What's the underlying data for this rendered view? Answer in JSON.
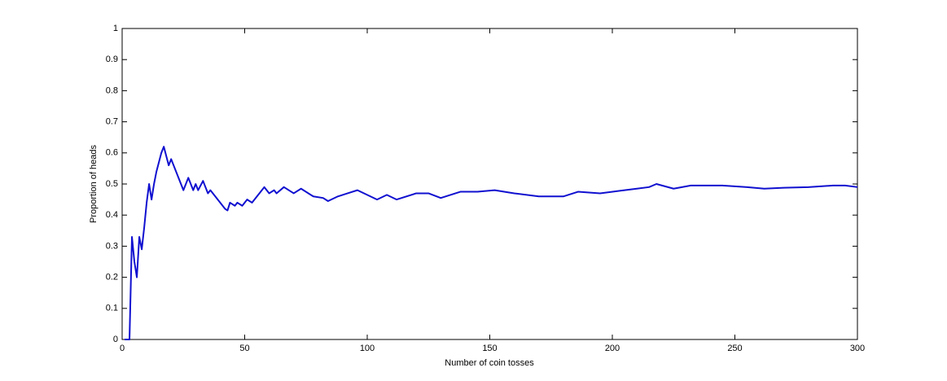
{
  "chart_data": {
    "type": "line",
    "xlabel": "Number of coin tosses",
    "ylabel": "Proportion of heads",
    "x": [
      1,
      2,
      3,
      4,
      5,
      6,
      7,
      8,
      9,
      10,
      11,
      12,
      13,
      14,
      15,
      16,
      17,
      18,
      19,
      20,
      22,
      24,
      25,
      27,
      29,
      30,
      31,
      33,
      35,
      36,
      38,
      42,
      43,
      44,
      46,
      47,
      49,
      51,
      53,
      58,
      60,
      62,
      63,
      66,
      70,
      73,
      78,
      82,
      84,
      88,
      92,
      96,
      104,
      108,
      112,
      120,
      125,
      130,
      138,
      145,
      152,
      160,
      170,
      180,
      186,
      195,
      205,
      210,
      215,
      218,
      225,
      232,
      240,
      245,
      255,
      262,
      270,
      280,
      290,
      295,
      300
    ],
    "series": [
      {
        "color": "#1010d0",
        "values": [
          0,
          0,
          0,
          0.33,
          0.25,
          0.2,
          0.33,
          0.29,
          0.36,
          0.44,
          0.5,
          0.45,
          0.5,
          0.54,
          0.57,
          0.6,
          0.62,
          0.59,
          0.56,
          0.58,
          0.54,
          0.5,
          0.48,
          0.52,
          0.48,
          0.5,
          0.48,
          0.51,
          0.47,
          0.48,
          0.46,
          0.42,
          0.415,
          0.44,
          0.43,
          0.44,
          0.43,
          0.45,
          0.44,
          0.49,
          0.47,
          0.48,
          0.47,
          0.49,
          0.47,
          0.485,
          0.46,
          0.455,
          0.445,
          0.46,
          0.47,
          0.48,
          0.45,
          0.465,
          0.45,
          0.47,
          0.47,
          0.455,
          0.475,
          0.475,
          0.48,
          0.47,
          0.46,
          0.46,
          0.475,
          0.47,
          0.48,
          0.485,
          0.49,
          0.5,
          0.485,
          0.495,
          0.495,
          0.495,
          0.49,
          0.485,
          0.488,
          0.49,
          0.495,
          0.495,
          0.49
        ]
      }
    ],
    "xlim": [
      0,
      300
    ],
    "xticks": [
      0,
      50,
      100,
      150,
      200,
      250,
      300
    ],
    "ylim": [
      0,
      1
    ],
    "yticks": [
      0,
      0.1,
      0.2,
      0.3,
      0.4,
      0.5,
      0.6,
      0.7,
      0.8,
      0.9,
      1
    ]
  }
}
